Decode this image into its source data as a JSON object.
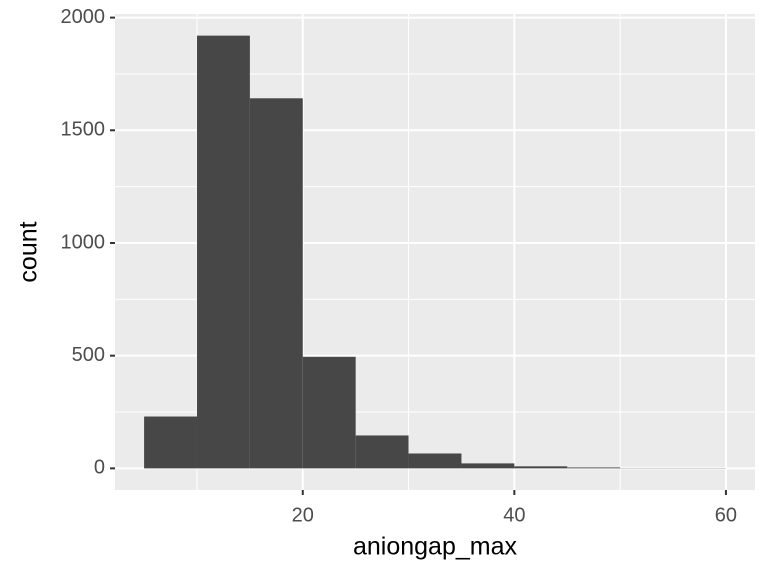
{
  "chart_data": {
    "type": "histogram",
    "x_label": "aniongap_max",
    "y_label": "count",
    "bins": [
      5,
      10,
      15,
      20,
      25,
      30,
      35,
      40,
      45,
      50,
      55,
      60
    ],
    "values": [
      230,
      1920,
      1642,
      495,
      146,
      66,
      22,
      9,
      4,
      1,
      1
    ],
    "color": "#474747",
    "xlim": [
      2.25,
      62.75
    ],
    "xticks": [
      20,
      40,
      60
    ],
    "ylim": [
      -96,
      2016
    ],
    "yticks": [
      0,
      500,
      1000,
      1500,
      2000
    ],
    "grid": true
  }
}
